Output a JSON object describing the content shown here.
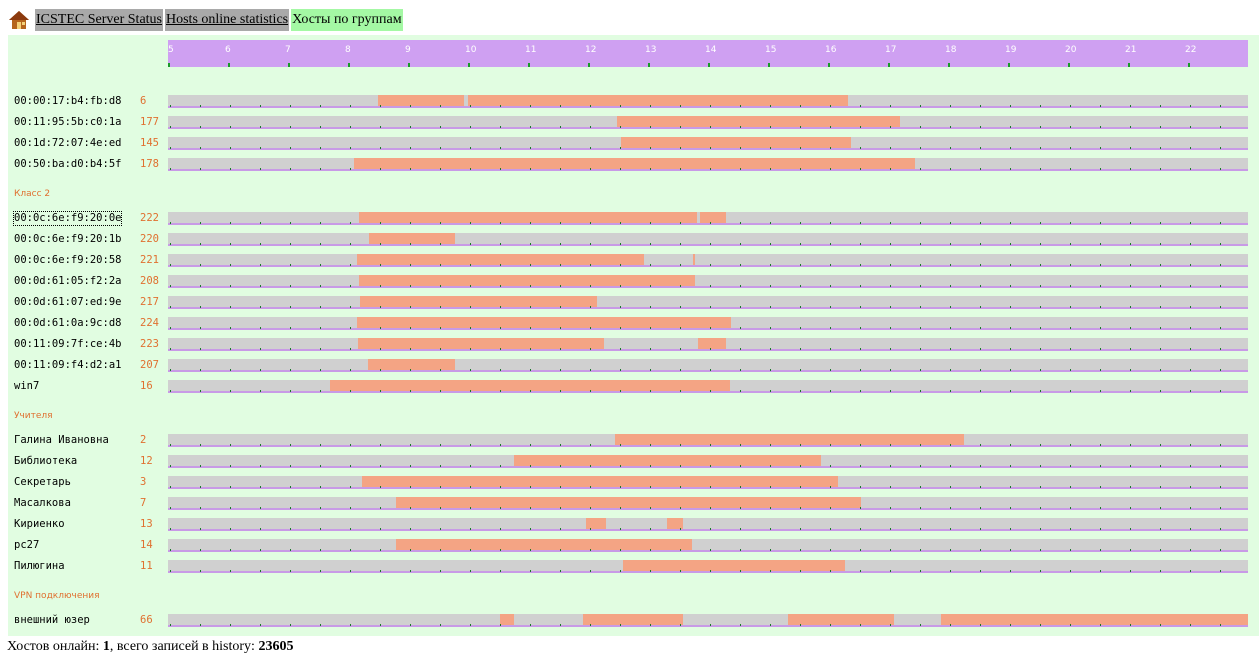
{
  "nav": {
    "home_icon": "home-icon",
    "links": [
      {
        "label": "ICSTEC Server Status",
        "style": "gray"
      },
      {
        "label": "Hosts online statistics",
        "style": "gray"
      },
      {
        "label": "Хосты по группам",
        "style": "active"
      }
    ]
  },
  "timeline": {
    "start_hour": 5,
    "end_hour": 23,
    "hours": [
      "5",
      "6",
      "7",
      "8",
      "9",
      "10",
      "11",
      "12",
      "13",
      "14",
      "15",
      "16",
      "17",
      "18",
      "19",
      "20",
      "21",
      "22"
    ]
  },
  "groups": [
    {
      "title": "",
      "hosts": [
        {
          "name": "00:00:17:b4:fb:d8",
          "count": "6",
          "online": [
            [
              8.5,
              9.93
            ],
            [
              10.0,
              16.33
            ]
          ]
        },
        {
          "name": "00:11:95:5b:c0:1a",
          "count": "177",
          "online": [
            [
              12.48,
              17.2
            ]
          ]
        },
        {
          "name": "00:1d:72:07:4e:ed",
          "count": "145",
          "online": [
            [
              12.55,
              16.38
            ]
          ]
        },
        {
          "name": "00:50:ba:d0:b4:5f",
          "count": "178",
          "online": [
            [
              8.1,
              17.45
            ]
          ]
        }
      ]
    },
    {
      "title": "Класс 2",
      "hosts": [
        {
          "name": "00:0c:6e:f9:20:0e",
          "count": "222",
          "online": [
            [
              8.18,
              13.82
            ],
            [
              13.87,
              14.3
            ]
          ],
          "selected": true
        },
        {
          "name": "00:0c:6e:f9:20:1b",
          "count": "220",
          "online": [
            [
              8.35,
              9.78
            ]
          ]
        },
        {
          "name": "00:0c:6e:f9:20:58",
          "count": "221",
          "online": [
            [
              8.15,
              12.93
            ],
            [
              13.75,
              13.78
            ]
          ]
        },
        {
          "name": "00:0d:61:05:f2:2a",
          "count": "208",
          "online": [
            [
              8.18,
              13.78
            ]
          ]
        },
        {
          "name": "00:0d:61:07:ed:9e",
          "count": "217",
          "online": [
            [
              8.2,
              12.15
            ]
          ]
        },
        {
          "name": "00:0d:61:0a:9c:d8",
          "count": "224",
          "online": [
            [
              8.15,
              14.38
            ]
          ]
        },
        {
          "name": "00:11:09:7f:ce:4b",
          "count": "223",
          "online": [
            [
              8.17,
              12.27
            ],
            [
              13.83,
              14.3
            ]
          ]
        },
        {
          "name": "00:11:09:f4:d2:a1",
          "count": "207",
          "online": [
            [
              8.33,
              9.78
            ]
          ]
        },
        {
          "name": "win7",
          "count": "16",
          "online": [
            [
              7.7,
              14.37
            ]
          ]
        }
      ]
    },
    {
      "title": "Учителя",
      "hosts": [
        {
          "name": "Галина Ивановна",
          "count": "2",
          "online": [
            [
              12.45,
              18.27
            ]
          ]
        },
        {
          "name": "Библиотека",
          "count": "12",
          "online": [
            [
              10.77,
              15.88
            ]
          ]
        },
        {
          "name": "Секретарь",
          "count": "3",
          "online": [
            [
              8.23,
              16.17
            ]
          ]
        },
        {
          "name": "Масалкова",
          "count": "7",
          "online": [
            [
              8.8,
              16.55
            ]
          ]
        },
        {
          "name": "Кириенко",
          "count": "13",
          "online": [
            [
              11.97,
              12.3
            ],
            [
              13.32,
              13.58
            ]
          ]
        },
        {
          "name": "pc27",
          "count": "14",
          "online": [
            [
              8.8,
              13.73
            ]
          ]
        },
        {
          "name": "Пилюгина",
          "count": "11",
          "online": [
            [
              12.58,
              16.28
            ]
          ]
        }
      ]
    },
    {
      "title": "VPN подключения",
      "hosts": [
        {
          "name": "внешний юзер",
          "count": "66",
          "online": [
            [
              10.53,
              10.77
            ],
            [
              11.92,
              13.58
            ],
            [
              15.33,
              17.1
            ],
            [
              17.88,
              23.0
            ]
          ]
        }
      ]
    }
  ],
  "footer": {
    "prefix": "Хостов онлайн: ",
    "online_count": "1",
    "middle": ", всего записей в history: ",
    "history_count": "23605"
  }
}
